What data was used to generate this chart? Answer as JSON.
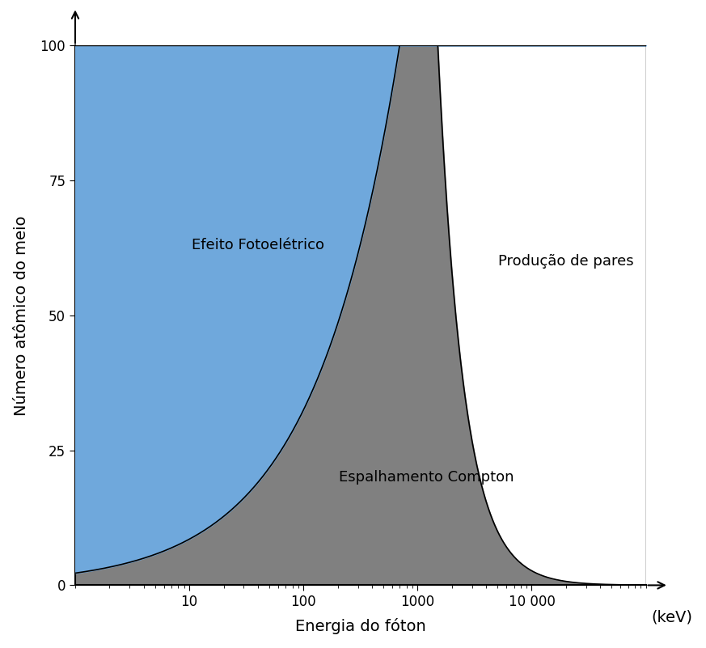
{
  "xlabel": "Energia do fóton",
  "ylabel": "Número atômico do meio",
  "xunit": "(keV)",
  "region1_label": "Efeito Fotoelétrico",
  "region2_label": "Espalhamento Compton",
  "region3_label": "Produção de pares",
  "color_photoelectric": "#6fa8dc",
  "color_compton": "#808080",
  "color_pair": "#ffffff",
  "xmin": 1,
  "xmax": 100000,
  "ylim": [
    0,
    100
  ],
  "yticks": [
    0,
    25,
    50,
    75,
    100
  ],
  "xtick_positions": [
    10,
    100,
    1000,
    10000
  ],
  "xtick_labels": [
    "10",
    "100",
    "1000",
    "10 000"
  ],
  "fontsize_labels": 14,
  "fontsize_region": 13,
  "C1": 0.4,
  "n1": 1.4,
  "C2": 20000000000.0,
  "n2": 2.8
}
